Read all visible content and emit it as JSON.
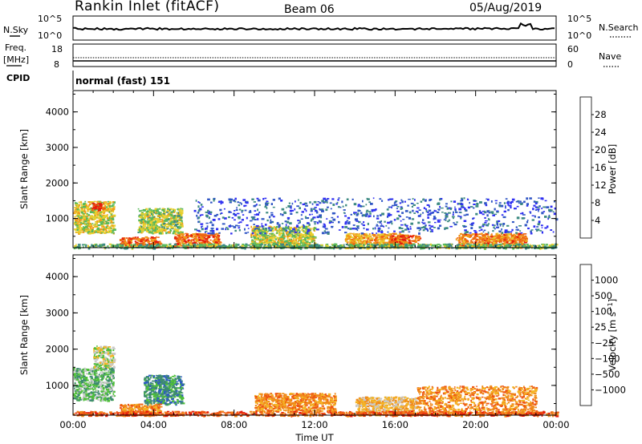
{
  "header": {
    "title": "Rankin Inlet (fitACF)",
    "beam": "Beam 06",
    "date": "05/Aug/2019"
  },
  "sky_panel": {
    "left_label": "N.Sky",
    "right_label": "N.Search",
    "left_ticks": [
      "10^5",
      "10^0"
    ],
    "right_ticks": [
      "10^5",
      "10^0"
    ]
  },
  "freq_panel": {
    "left_label_line1": "Freq.",
    "left_label_line2": "[MHz]",
    "right_label": "Nave",
    "left_ticks": [
      "18",
      "8"
    ],
    "right_ticks": [
      "60",
      "0"
    ]
  },
  "cpid": {
    "label": "CPID",
    "value": "normal (fast) 151"
  },
  "chart_data": [
    {
      "type": "heatmap",
      "title": "",
      "xlabel": "",
      "ylabel": "Slant Range [km]",
      "x_range_hours": [
        0,
        24
      ],
      "ylim": [
        180,
        4600
      ],
      "x_ticks": [
        "00:00",
        "04:00",
        "08:00",
        "12:00",
        "16:00",
        "20:00",
        "00:00"
      ],
      "y_ticks": [
        1000,
        2000,
        3000,
        4000
      ],
      "colorbar": {
        "label": "Power [dB]",
        "range": [
          0,
          32
        ],
        "ticks": [
          "4",
          "8",
          "12",
          "16",
          "20",
          "24",
          "28"
        ],
        "colors": [
          "#2e2ef2",
          "#2f55c4",
          "#3d8a82",
          "#58b85a",
          "#e8cf2c",
          "#f09a1a",
          "#ee6612",
          "#e51c0c"
        ]
      },
      "scatter_regions": [
        {
          "x": [
            0.0,
            2.0
          ],
          "y": [
            600,
            1500
          ],
          "level": 18
        },
        {
          "x": [
            0.9,
            1.5
          ],
          "y": [
            1250,
            1450
          ],
          "level": 29
        },
        {
          "x": [
            3.2,
            5.4
          ],
          "y": [
            600,
            1300
          ],
          "level": 16
        },
        {
          "x": [
            2.3,
            4.3
          ],
          "y": [
            200,
            500
          ],
          "level": 26
        },
        {
          "x": [
            5.0,
            7.3
          ],
          "y": [
            200,
            600
          ],
          "level": 25
        },
        {
          "x": [
            8.8,
            12.0
          ],
          "y": [
            200,
            800
          ],
          "level": 17
        },
        {
          "x": [
            13.5,
            16.5
          ],
          "y": [
            200,
            600
          ],
          "level": 22
        },
        {
          "x": [
            15.7,
            17.2
          ],
          "y": [
            300,
            550
          ],
          "level": 26
        },
        {
          "x": [
            19.0,
            22.5
          ],
          "y": [
            200,
            600
          ],
          "level": 24
        },
        {
          "x": [
            6.0,
            24.0
          ],
          "y": [
            600,
            1600
          ],
          "level": 6
        },
        {
          "x": [
            0.0,
            24.0
          ],
          "y": [
            180,
            300
          ],
          "level": 13
        }
      ]
    },
    {
      "type": "heatmap",
      "title": "",
      "xlabel": "Time UT",
      "ylabel": "Slant Range [km]",
      "x_range_hours": [
        0,
        24
      ],
      "ylim": [
        180,
        4600
      ],
      "x_ticks": [
        "00:00",
        "04:00",
        "08:00",
        "12:00",
        "16:00",
        "20:00",
        "00:00"
      ],
      "y_ticks": [
        1000,
        2000,
        3000,
        4000
      ],
      "colorbar": {
        "label": "Velocity [m s^-1]",
        "ticks": [
          "1000",
          "500",
          "100",
          "25",
          "-25",
          "-100",
          "-500",
          "-1000"
        ],
        "colors": [
          "#2a2ad8",
          "#2f5fbf",
          "#3d8a70",
          "#4fbf3a",
          "#c8c8c8",
          "#f4b424",
          "#f08a1a",
          "#ee5512",
          "#e51c0c"
        ]
      },
      "scatter_regions": [
        {
          "x": [
            0.0,
            2.0
          ],
          "y": [
            600,
            1500
          ],
          "level": 3
        },
        {
          "x": [
            1.0,
            2.0
          ],
          "y": [
            1500,
            2100
          ],
          "level": 4
        },
        {
          "x": [
            3.5,
            5.4
          ],
          "y": [
            500,
            1300
          ],
          "level": 2
        },
        {
          "x": [
            2.3,
            4.3
          ],
          "y": [
            200,
            500
          ],
          "level": 6
        },
        {
          "x": [
            9.0,
            13.0
          ],
          "y": [
            300,
            800
          ],
          "level": 6
        },
        {
          "x": [
            14.0,
            17.0
          ],
          "y": [
            200,
            700
          ],
          "level": 5
        },
        {
          "x": [
            17.0,
            23.0
          ],
          "y": [
            200,
            1000
          ],
          "level": 6
        },
        {
          "x": [
            0.0,
            24.0
          ],
          "y": [
            180,
            300
          ],
          "level": 7
        }
      ]
    }
  ]
}
